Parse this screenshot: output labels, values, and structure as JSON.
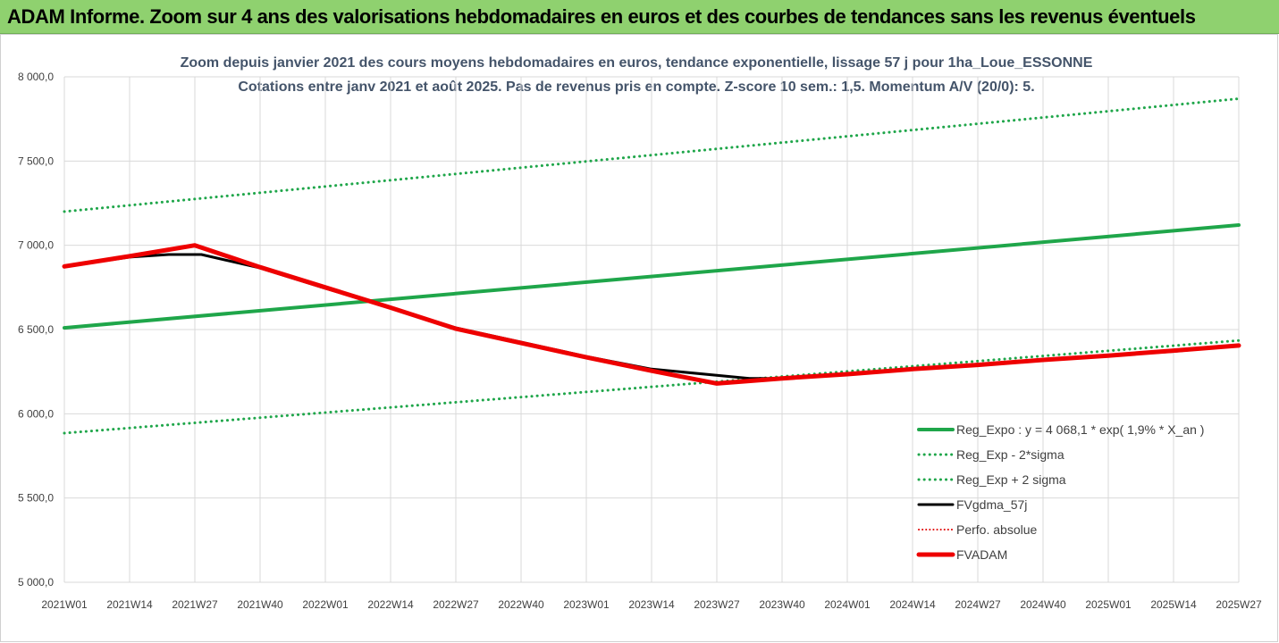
{
  "header": {
    "title": "ADAM Informe. Zoom sur 4 ans des valorisations hebdomadaires en euros et des courbes de tendances sans les revenus éventuels",
    "accent": "#8fd16f"
  },
  "chart_data": {
    "type": "line",
    "title_line1": "Zoom depuis janvier 2021 des cours moyens hebdomadaires en euros, tendance exponentielle, lissage 57 j pour 1ha_Loue_ESSONNE",
    "title_line2": "Cotations entre janv 2021 et août 2025.  Pas de revenus pris en compte. Z-score 10 sem.: 1,5. Momentum A/V (20/0): 5.",
    "ylim": [
      5000,
      8000
    ],
    "yticks": [
      "8 000,0",
      "7 500,0",
      "7 000,0",
      "6 500,0",
      "6 000,0",
      "5 500,0",
      "5 000,0"
    ],
    "ytick_values": [
      8000,
      7500,
      7000,
      6500,
      6000,
      5500,
      5000
    ],
    "xticks": [
      "2021W01",
      "2021W14",
      "2021W27",
      "2021W40",
      "2022W01",
      "2022W14",
      "2022W27",
      "2022W40",
      "2023W01",
      "2023W14",
      "2023W27",
      "2023W40",
      "2024W01",
      "2024W14",
      "2024W27",
      "2024W40",
      "2025W01",
      "2025W14",
      "2025W27"
    ],
    "grid": true,
    "legend_position": "bottom-right",
    "series": [
      {
        "name": "Reg_Expo : y = 4 068,1 * exp( 1,9% *  X_an )",
        "color": "#1fa64a",
        "style": "solid",
        "width": 4,
        "x": [
          0,
          18
        ],
        "y": [
          6510,
          7120
        ]
      },
      {
        "name": "Reg_Exp - 2*sigma",
        "color": "#1fa64a",
        "style": "dotted",
        "width": 3,
        "x": [
          0,
          18
        ],
        "y": [
          5885,
          6435
        ]
      },
      {
        "name": "Reg_Exp + 2 sigma",
        "color": "#1fa64a",
        "style": "dotted",
        "width": 3,
        "x": [
          0,
          18
        ],
        "y": [
          7200,
          7870
        ]
      },
      {
        "name": "FVgdma_57j",
        "color": "#000000",
        "style": "solid",
        "width": 3,
        "x": [
          0,
          1,
          1.6,
          2.1,
          3,
          4,
          5,
          6,
          7,
          8,
          9,
          10.5,
          11,
          12,
          13,
          14,
          15,
          16,
          17,
          18
        ],
        "y": [
          6875,
          6930,
          6945,
          6945,
          6865,
          6745,
          6630,
          6510,
          6425,
          6340,
          6265,
          6210,
          6210,
          6235,
          6265,
          6295,
          6320,
          6345,
          6370,
          6405
        ]
      },
      {
        "name": "Perfo. absolue",
        "color": "#e00000",
        "style": "dotted",
        "width": 2,
        "x": [
          0,
          1,
          2,
          3,
          4,
          5,
          6,
          7,
          8,
          9,
          10,
          11,
          12,
          13,
          14,
          15,
          16,
          17,
          18
        ],
        "y": [
          6875,
          6935,
          7000,
          6870,
          6750,
          6630,
          6505,
          6420,
          6335,
          6255,
          6180,
          6210,
          6235,
          6265,
          6290,
          6320,
          6345,
          6375,
          6405
        ]
      },
      {
        "name": "FVADAM",
        "color": "#ee0000",
        "style": "solid",
        "width": 5,
        "x": [
          0,
          1,
          2,
          3,
          4,
          5,
          6,
          7,
          8,
          9,
          10,
          11,
          12,
          13,
          14,
          15,
          16,
          17,
          18
        ],
        "y": [
          6875,
          6935,
          7000,
          6870,
          6750,
          6630,
          6505,
          6420,
          6335,
          6255,
          6180,
          6210,
          6235,
          6265,
          6290,
          6320,
          6345,
          6375,
          6405
        ]
      }
    ]
  }
}
